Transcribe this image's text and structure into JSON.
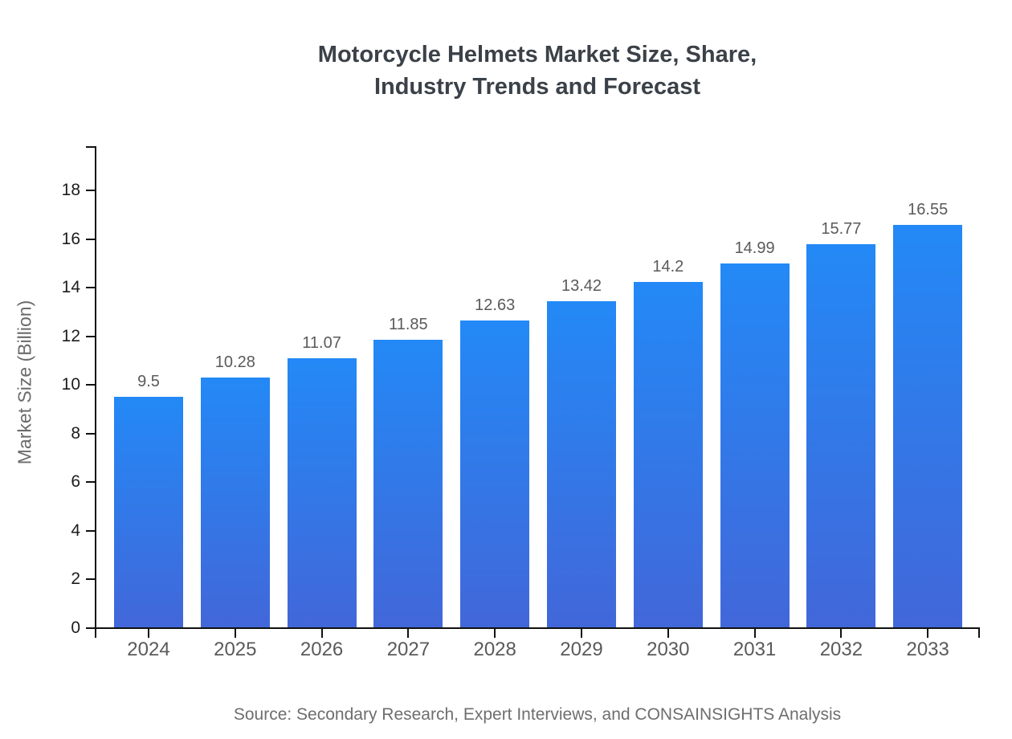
{
  "title": {
    "line1": "Motorcycle Helmets Market Size, Share,",
    "line2": "Industry Trends and Forecast"
  },
  "source": "Source: Secondary Research, Expert Interviews, and CONSAINSIGHTS Analysis",
  "chart_data": {
    "type": "bar",
    "title": "Motorcycle Helmets Market Size, Share, Industry Trends and Forecast",
    "categories": [
      "2024",
      "2025",
      "2026",
      "2027",
      "2028",
      "2029",
      "2030",
      "2031",
      "2032",
      "2033"
    ],
    "values": [
      9.5,
      10.28,
      11.07,
      11.85,
      12.63,
      13.42,
      14.2,
      14.99,
      15.77,
      16.55
    ],
    "value_labels": [
      "9.5",
      "10.28",
      "11.07",
      "11.85",
      "12.63",
      "13.42",
      "14.2",
      "14.99",
      "15.77",
      "16.55"
    ],
    "xlabel": "",
    "ylabel": "Market Size (Billion)",
    "ylim": [
      0,
      19.8
    ],
    "yticks": [
      0,
      2,
      4,
      6,
      8,
      10,
      12,
      14,
      16,
      18
    ],
    "grid": false,
    "legend": "none",
    "colors": {
      "bar_gradient_top": "#2389f6",
      "bar_gradient_bottom": "#4267d9",
      "axis": "#111111",
      "y_tick_label": "#1c1c1c",
      "x_tick_label": "#5a5a5a",
      "value_label": "#5a5a5a",
      "title": "#3b4148",
      "source_text": "#6e6e6e",
      "ylabel_text": "#6b6b6b"
    }
  }
}
